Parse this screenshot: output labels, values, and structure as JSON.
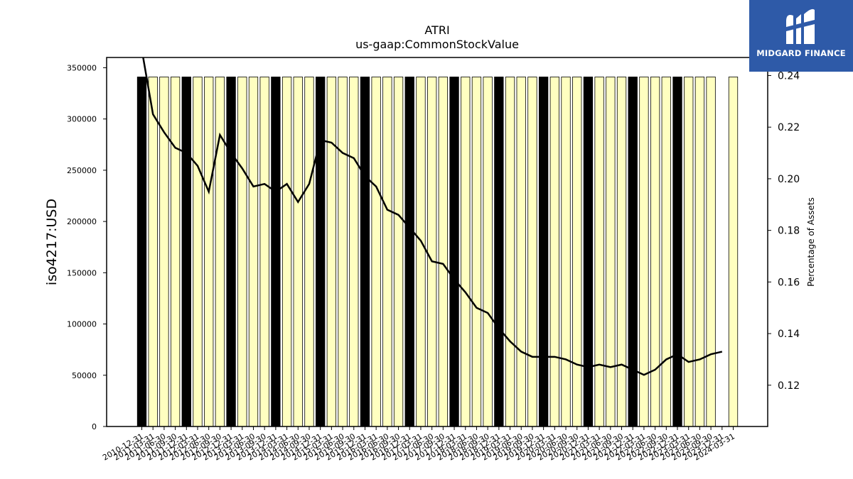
{
  "logo": {
    "text": "MIDGARD FINANCE",
    "icon": "midgard-logo-icon",
    "background": "#2e5aa8"
  },
  "chart_data": {
    "type": "bar",
    "title": "ATRI",
    "subtitle": "us-gaap:CommonStockValue",
    "ylabel": "iso4217:USD",
    "y2label": "Percentage of Assets",
    "ylim": [
      0,
      360000
    ],
    "y2lim": [
      0.104,
      0.247
    ],
    "yticks": [
      0,
      50000,
      100000,
      150000,
      200000,
      250000,
      300000,
      350000
    ],
    "y2ticks": [
      "0.12",
      "0.14",
      "0.16",
      "0.18",
      "0.20",
      "0.22",
      "0.24"
    ],
    "colors": {
      "bar": "#ffffc0",
      "bar_q4": "#000000",
      "edge": "#000000",
      "line": "#000000"
    },
    "categories": [
      "2010-12-31",
      "2011-03-31",
      "2011-06-30",
      "2011-09-30",
      "2011-12-31",
      "2012-03-31",
      "2012-06-30",
      "2012-09-30",
      "2012-12-31",
      "2013-03-31",
      "2013-06-30",
      "2013-09-30",
      "2013-12-31",
      "2014-03-31",
      "2014-06-30",
      "2014-09-30",
      "2014-12-31",
      "2015-03-31",
      "2015-06-30",
      "2015-09-30",
      "2015-12-31",
      "2016-03-31",
      "2016-06-30",
      "2016-09-30",
      "2016-12-31",
      "2017-03-31",
      "2017-06-30",
      "2017-09-30",
      "2017-12-31",
      "2018-03-31",
      "2018-06-30",
      "2018-09-30",
      "2018-12-31",
      "2019-03-31",
      "2019-06-30",
      "2019-09-30",
      "2019-12-31",
      "2020-03-31",
      "2020-06-30",
      "2020-09-30",
      "2020-12-31",
      "2021-03-31",
      "2021-06-30",
      "2021-09-30",
      "2021-12-31",
      "2022-03-31",
      "2022-06-30",
      "2022-09-30",
      "2022-12-31",
      "2023-03-31",
      "2023-06-30",
      "2023-09-30",
      "2023-12-31",
      "2024-03-31"
    ],
    "tick_labels": [
      "2010-12-31",
      "2011-03-31",
      "2011-06-30",
      "2011-09-30",
      "2011-12-31",
      "2012-03-31",
      "2012-06-30",
      "2012-09-30",
      "2012-12-31",
      "2013-03-31",
      "2013-06-30",
      "2013-09-30",
      "2013-12-31",
      "2014-03-31",
      "2014-06-30",
      "2014-09-30",
      "2014-12-31",
      "2015-03-31",
      "2015-06-30",
      "2015-09-30",
      "2015-12-31",
      "2016-03-31",
      "2016-06-30",
      "2016-09-30",
      "2016-12-31",
      "2017-03-31",
      "2017-06-30",
      "2017-09-30",
      "2017-12-31",
      "2018-03-31",
      "2018-06-30",
      "2018-09-30",
      "2018-12-31",
      "2019-03-31",
      "2019-06-30",
      "2019-09-30",
      "2019-12-31",
      "2020-03-31",
      "2020-06-30",
      "2020-09-30",
      "2020-12-31",
      "2021-03-31",
      "2021-06-30",
      "2021-09-30",
      "2021-12-31",
      "2022-03-31",
      "2022-06-30",
      "2022-09-30",
      "2022-12-31",
      "2023-03-31",
      "2023-06-30",
      "2023-09-30",
      "2023-12-31",
      "2024-03-31"
    ],
    "series": [
      {
        "kind": "bar",
        "values": [
          341000,
          341000,
          341000,
          341000,
          341000,
          341000,
          341000,
          341000,
          341000,
          341000,
          341000,
          341000,
          341000,
          341000,
          341000,
          341000,
          341000,
          341000,
          341000,
          341000,
          341000,
          341000,
          341000,
          341000,
          341000,
          341000,
          341000,
          341000,
          341000,
          341000,
          341000,
          341000,
          341000,
          341000,
          341000,
          341000,
          341000,
          341000,
          341000,
          341000,
          341000,
          341000,
          341000,
          341000,
          341000,
          341000,
          341000,
          341000,
          341000,
          341000,
          341000,
          341000,
          null,
          341000
        ]
      },
      {
        "kind": "line",
        "name": "Percentage of Assets",
        "axis": "right",
        "values": [
          0.25,
          0.225,
          0.218,
          0.212,
          0.21,
          0.205,
          0.195,
          0.217,
          0.21,
          0.204,
          0.197,
          0.198,
          0.195,
          0.198,
          0.191,
          0.198,
          0.215,
          0.214,
          0.21,
          0.208,
          0.201,
          0.197,
          0.188,
          0.186,
          0.181,
          0.176,
          0.168,
          0.167,
          0.161,
          0.156,
          0.15,
          0.148,
          0.142,
          0.137,
          0.133,
          0.131,
          0.131,
          0.131,
          0.13,
          0.128,
          0.127,
          0.128,
          0.127,
          0.128,
          0.126,
          0.124,
          0.126,
          0.13,
          0.132,
          0.129,
          0.13,
          0.132,
          0.133,
          null
        ]
      }
    ]
  }
}
